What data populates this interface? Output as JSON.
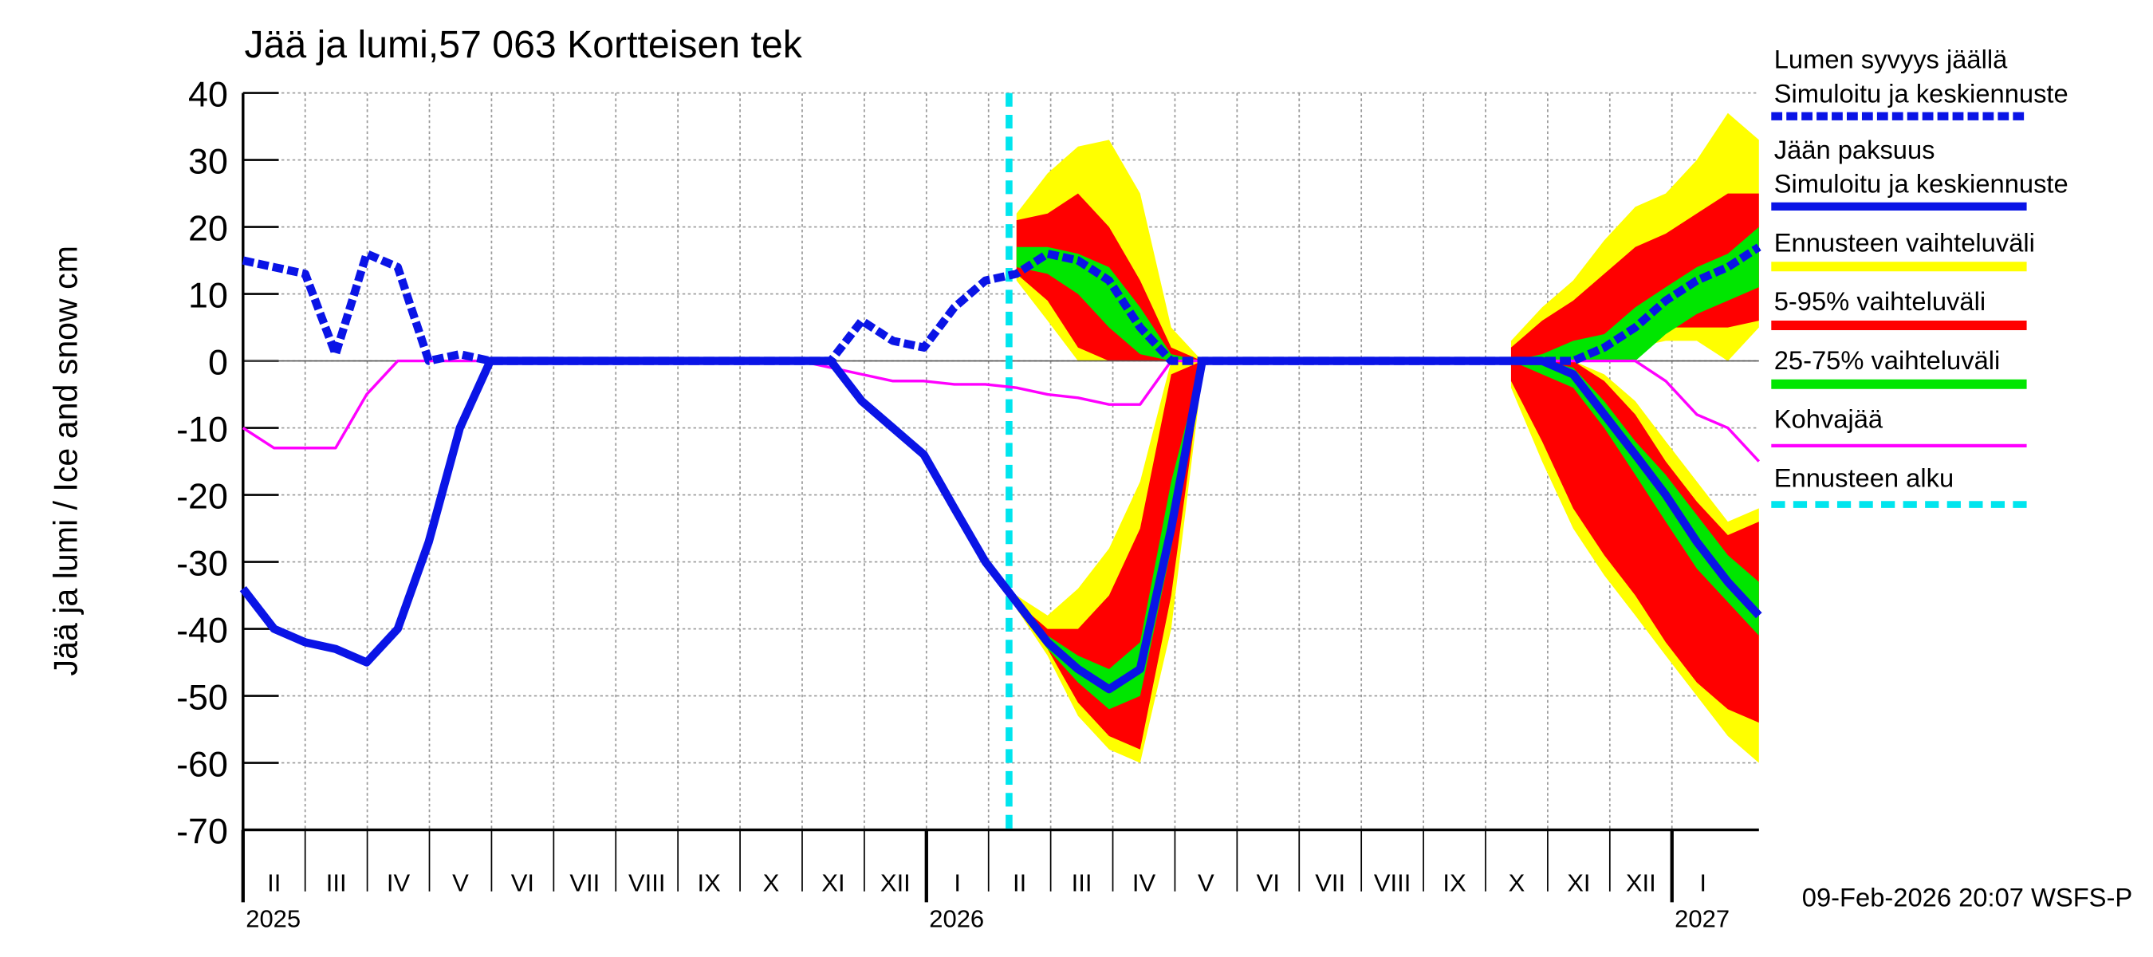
{
  "chart_data": {
    "type": "line",
    "title": "Jää ja lumi,57 063 Kortteisen tek",
    "ylabel": "Jää ja lumi / Ice and snow    cm",
    "footer": "09-Feb-2026 20:07 WSFS-P",
    "xlim": [
      0,
      24.4
    ],
    "ylim": [
      -70,
      40
    ],
    "yticks": [
      40,
      30,
      20,
      10,
      0,
      -10,
      -20,
      -30,
      -40,
      -50,
      -60,
      -70
    ],
    "grid": true,
    "month_labels": [
      "II",
      "III",
      "IV",
      "V",
      "VI",
      "VII",
      "VIII",
      "IX",
      "X",
      "XI",
      "XII",
      "I",
      "II",
      "III",
      "IV",
      "V",
      "VI",
      "VII",
      "VIII",
      "IX",
      "X",
      "XI",
      "XII",
      "I"
    ],
    "xticks": [
      {
        "value": 0,
        "label": "2025"
      },
      {
        "value": 11,
        "label": "2026"
      },
      {
        "value": 23,
        "label": "2027"
      }
    ],
    "x": [
      0,
      0.5,
      1,
      1.49,
      1.99,
      2.49,
      2.99,
      3.49,
      3.98,
      4.48,
      4.98,
      5.48,
      5.98,
      6.47,
      6.97,
      7.47,
      7.97,
      8.47,
      8.96,
      9.46,
      9.96,
      10.46,
      10.96,
      11.45,
      11.95,
      12.45,
      12.95,
      13.44,
      13.94,
      14.44,
      14.94,
      15.44,
      15.93,
      16.43,
      16.93,
      17.43,
      17.93,
      18.42,
      18.92,
      19.42,
      19.92,
      20.41,
      20.91,
      21.41,
      21.91,
      22.41,
      22.9,
      23.4,
      23.9,
      24.4
    ],
    "series": [
      {
        "name": "Lumen syvyys jäällä",
        "label": "Simuloitu ja keskiennuste",
        "color": "#0a14e6",
        "dashed": true,
        "values": [
          15,
          14,
          13,
          1,
          16,
          14,
          0,
          1,
          0,
          0,
          0,
          0,
          0,
          0,
          0,
          0,
          0,
          0,
          0,
          0,
          6,
          3,
          2,
          8,
          12,
          13,
          16,
          15,
          12,
          5,
          0,
          0,
          0,
          0,
          0,
          0,
          0,
          0,
          0,
          0,
          0,
          0,
          0,
          0,
          2,
          5,
          9,
          12,
          14,
          17
        ]
      },
      {
        "name": "Jään paksuus",
        "label": "Simuloitu ja keskiennuste",
        "color": "#0a14e6",
        "dashed": false,
        "values": [
          -34,
          -40,
          -42,
          -43,
          -45,
          -40,
          -27,
          -10,
          0,
          0,
          0,
          0,
          0,
          0,
          0,
          0,
          0,
          0,
          0,
          0,
          -6,
          -10,
          -14,
          -22,
          -30,
          -36,
          -42,
          -46,
          -49,
          -46,
          -25,
          0,
          0,
          0,
          0,
          0,
          0,
          0,
          0,
          0,
          0,
          0,
          0,
          -2,
          -8,
          -14,
          -20,
          -27,
          -33,
          -38
        ]
      },
      {
        "name": "Kohvajää",
        "color": "#ff00ff",
        "dashed": false,
        "values": [
          -10,
          -13,
          -13,
          -13,
          -5,
          0,
          0,
          0,
          0,
          0,
          0,
          0,
          0,
          0,
          0,
          0,
          0,
          0,
          0,
          -1,
          -2,
          -3,
          -3,
          -3.5,
          -3.5,
          -4,
          -5,
          -5.5,
          -6.5,
          -6.5,
          0,
          0,
          0,
          0,
          0,
          0,
          0,
          0,
          0,
          0,
          0,
          0,
          0,
          0,
          0,
          0,
          -3,
          -8,
          -10,
          -15
        ]
      }
    ],
    "bands": [
      {
        "name": "Ennusteen vaihteluväli",
        "color": "#ffff00",
        "snow": {
          "lower": [
            null,
            null,
            null,
            null,
            null,
            null,
            null,
            null,
            null,
            null,
            null,
            null,
            null,
            null,
            null,
            null,
            null,
            null,
            null,
            null,
            null,
            null,
            null,
            null,
            null,
            12,
            6,
            0,
            0,
            0,
            0,
            0,
            null,
            null,
            null,
            null,
            null,
            null,
            null,
            null,
            null,
            0,
            0,
            0,
            0,
            2,
            3,
            3,
            0,
            5
          ],
          "upper": [
            null,
            null,
            null,
            null,
            null,
            null,
            null,
            null,
            null,
            null,
            null,
            null,
            null,
            null,
            null,
            null,
            null,
            null,
            null,
            null,
            null,
            null,
            null,
            null,
            null,
            22,
            28,
            32,
            33,
            25,
            5,
            0,
            null,
            null,
            null,
            null,
            null,
            null,
            null,
            null,
            null,
            3,
            8,
            12,
            18,
            23,
            25,
            30,
            37,
            33
          ]
        },
        "ice": {
          "lower": [
            null,
            null,
            null,
            null,
            null,
            null,
            null,
            null,
            null,
            null,
            null,
            null,
            null,
            null,
            null,
            null,
            null,
            null,
            null,
            null,
            null,
            null,
            null,
            null,
            null,
            -37,
            -44,
            -53,
            -58,
            -60,
            -40,
            -2,
            null,
            null,
            null,
            null,
            null,
            null,
            null,
            null,
            null,
            -4,
            -15,
            -25,
            -32,
            -38,
            -44,
            -50,
            -56,
            -60
          ],
          "upper": [
            null,
            null,
            null,
            null,
            null,
            null,
            null,
            null,
            null,
            null,
            null,
            null,
            null,
            null,
            null,
            null,
            null,
            null,
            null,
            null,
            null,
            null,
            null,
            null,
            null,
            -35,
            -38,
            -34,
            -28,
            -18,
            0,
            0,
            null,
            null,
            null,
            null,
            null,
            null,
            null,
            null,
            null,
            0,
            0,
            0,
            -2,
            -6,
            -12,
            -18,
            -24,
            -22
          ]
        }
      },
      {
        "name": "5-95% vaihteluväli",
        "color": "#ff0000",
        "snow": {
          "lower": [
            null,
            null,
            null,
            null,
            null,
            null,
            null,
            null,
            null,
            null,
            null,
            null,
            null,
            null,
            null,
            null,
            null,
            null,
            null,
            null,
            null,
            null,
            null,
            null,
            null,
            13,
            9,
            2,
            0,
            0,
            0,
            0,
            null,
            null,
            null,
            null,
            null,
            null,
            null,
            null,
            null,
            0,
            0,
            0,
            0,
            3,
            5,
            5,
            5,
            6
          ],
          "upper": [
            null,
            null,
            null,
            null,
            null,
            null,
            null,
            null,
            null,
            null,
            null,
            null,
            null,
            null,
            null,
            null,
            null,
            null,
            null,
            null,
            null,
            null,
            null,
            null,
            null,
            21,
            22,
            25,
            20,
            12,
            2,
            0,
            null,
            null,
            null,
            null,
            null,
            null,
            null,
            null,
            null,
            2,
            6,
            9,
            13,
            17,
            19,
            22,
            25,
            25
          ]
        },
        "ice": {
          "lower": [
            null,
            null,
            null,
            null,
            null,
            null,
            null,
            null,
            null,
            null,
            null,
            null,
            null,
            null,
            null,
            null,
            null,
            null,
            null,
            null,
            null,
            null,
            null,
            null,
            null,
            -37,
            -43,
            -51,
            -56,
            -58,
            -35,
            -1,
            null,
            null,
            null,
            null,
            null,
            null,
            null,
            null,
            null,
            -3,
            -12,
            -22,
            -29,
            -35,
            -42,
            -48,
            -52,
            -54
          ],
          "upper": [
            null,
            null,
            null,
            null,
            null,
            null,
            null,
            null,
            null,
            null,
            null,
            null,
            null,
            null,
            null,
            null,
            null,
            null,
            null,
            null,
            null,
            null,
            null,
            null,
            null,
            -36,
            -40,
            -40,
            -35,
            -25,
            -2,
            0,
            null,
            null,
            null,
            null,
            null,
            null,
            null,
            null,
            null,
            0,
            0,
            0,
            -3,
            -8,
            -15,
            -21,
            -26,
            -24
          ]
        }
      },
      {
        "name": "25-75% vaihteluväli",
        "color": "#00e600",
        "snow": {
          "lower": [
            null,
            null,
            null,
            null,
            null,
            null,
            null,
            null,
            null,
            null,
            null,
            null,
            null,
            null,
            null,
            null,
            null,
            null,
            null,
            null,
            null,
            null,
            null,
            null,
            null,
            14,
            13,
            10,
            5,
            1,
            0,
            0,
            null,
            null,
            null,
            null,
            null,
            null,
            null,
            null,
            null,
            0,
            0,
            0,
            0,
            0,
            4,
            7,
            9,
            11
          ],
          "upper": [
            null,
            null,
            null,
            null,
            null,
            null,
            null,
            null,
            null,
            null,
            null,
            null,
            null,
            null,
            null,
            null,
            null,
            null,
            null,
            null,
            null,
            null,
            null,
            null,
            null,
            17,
            17,
            16,
            14,
            8,
            1,
            0,
            null,
            null,
            null,
            null,
            null,
            null,
            null,
            null,
            null,
            0,
            1,
            3,
            4,
            8,
            11,
            14,
            16,
            20
          ]
        },
        "ice": {
          "lower": [
            null,
            null,
            null,
            null,
            null,
            null,
            null,
            null,
            null,
            null,
            null,
            null,
            null,
            null,
            null,
            null,
            null,
            null,
            null,
            null,
            null,
            null,
            null,
            null,
            null,
            -37,
            -43,
            -48,
            -52,
            -50,
            -28,
            -1,
            null,
            null,
            null,
            null,
            null,
            null,
            null,
            null,
            null,
            0,
            -2,
            -4,
            -10,
            -17,
            -24,
            -31,
            -36,
            -41
          ],
          "upper": [
            null,
            null,
            null,
            null,
            null,
            null,
            null,
            null,
            null,
            null,
            null,
            null,
            null,
            null,
            null,
            null,
            null,
            null,
            null,
            null,
            null,
            null,
            null,
            null,
            null,
            -36,
            -41,
            -44,
            -46,
            -42,
            -18,
            0,
            null,
            null,
            null,
            null,
            null,
            null,
            null,
            null,
            null,
            0,
            0,
            -1,
            -6,
            -12,
            -17,
            -23,
            -29,
            -33
          ]
        }
      }
    ],
    "forecast_start": {
      "name": "Ennusteen alku",
      "color": "#00e5ee",
      "x": 12.33
    }
  }
}
